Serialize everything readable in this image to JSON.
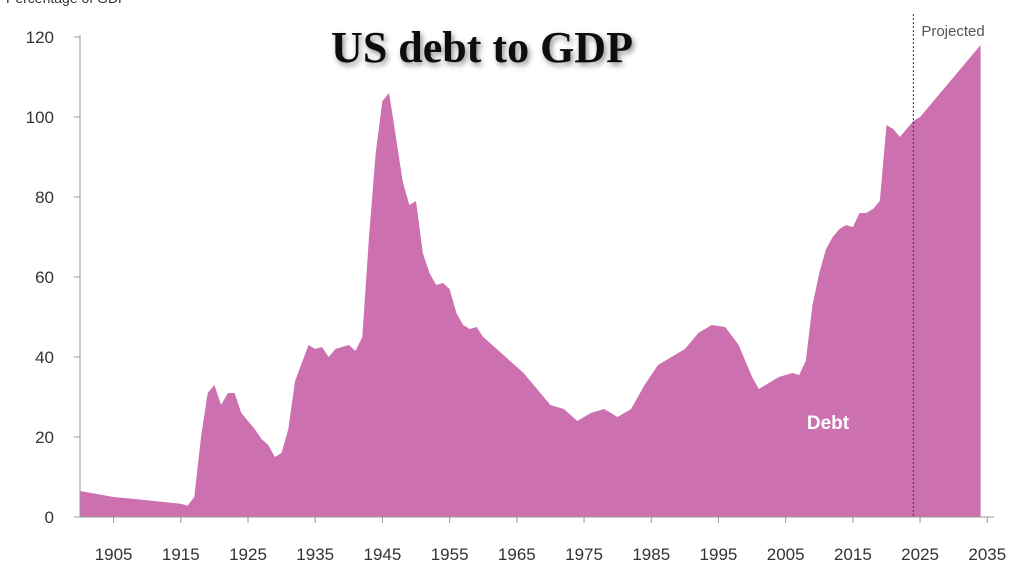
{
  "chart_data": {
    "type": "area",
    "title": "US debt to GDP",
    "ylabel": "Percentage of GDP",
    "xlabel": "",
    "xlim": [
      1900,
      2036
    ],
    "ylim": [
      0,
      120
    ],
    "yticks": [
      0,
      20,
      40,
      60,
      80,
      100,
      120
    ],
    "xticks": [
      1905,
      1915,
      1925,
      1935,
      1945,
      1955,
      1965,
      1975,
      1985,
      1995,
      2005,
      2015,
      2025,
      2035
    ],
    "grid": false,
    "legend": "none",
    "projection_start": 2024,
    "projection_label": "Projected",
    "series": [
      {
        "name": "Debt",
        "color": "#cc70b0",
        "x": [
          1900,
          1905,
          1910,
          1915,
          1916,
          1917,
          1918,
          1919,
          1920,
          1921,
          1922,
          1923,
          1924,
          1925,
          1926,
          1927,
          1928,
          1929,
          1930,
          1931,
          1932,
          1933,
          1934,
          1935,
          1936,
          1937,
          1938,
          1939,
          1940,
          1941,
          1942,
          1943,
          1944,
          1945,
          1946,
          1947,
          1948,
          1949,
          1950,
          1951,
          1952,
          1953,
          1954,
          1955,
          1956,
          1957,
          1958,
          1959,
          1960,
          1962,
          1964,
          1966,
          1968,
          1970,
          1972,
          1974,
          1976,
          1978,
          1980,
          1982,
          1984,
          1986,
          1988,
          1990,
          1992,
          1994,
          1996,
          1998,
          2000,
          2001,
          2002,
          2004,
          2006,
          2007,
          2008,
          2009,
          2010,
          2011,
          2012,
          2013,
          2014,
          2015,
          2016,
          2017,
          2018,
          2019,
          2020,
          2021,
          2022,
          2023,
          2024,
          2025,
          2030,
          2034
        ],
        "values": [
          6.5,
          5,
          4.2,
          3.3,
          2.8,
          5,
          20,
          31,
          33,
          28,
          31,
          31,
          26,
          24,
          22,
          19.5,
          18,
          15,
          16,
          22,
          34,
          38.5,
          43,
          42,
          42.5,
          40,
          42,
          42.5,
          43,
          41.5,
          45,
          70,
          91,
          104,
          106,
          95,
          84,
          78,
          79,
          66,
          61,
          58,
          58.5,
          57,
          51,
          48,
          47,
          47.5,
          45,
          42,
          39,
          36,
          32,
          28,
          27,
          24,
          26,
          27,
          25,
          27,
          33,
          38,
          40,
          42,
          46,
          48,
          47.5,
          43,
          35,
          32,
          33,
          35,
          36,
          35.5,
          39,
          53,
          61,
          67,
          70,
          72,
          73,
          72.5,
          76,
          76,
          77,
          79,
          98,
          97,
          95,
          97,
          99,
          100,
          110,
          118
        ]
      }
    ]
  }
}
